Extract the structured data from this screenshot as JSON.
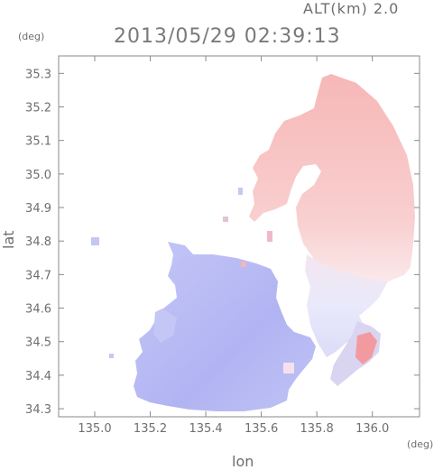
{
  "header": {
    "altitude": "ALT(km) 2.0",
    "timestamp": "2013/05/29 02:39:13",
    "unit_y": "(deg)",
    "unit_x": "(deg)"
  },
  "axes": {
    "xlabel": "lon",
    "ylabel": "lat",
    "x_ticks": [
      "135.0",
      "135.2",
      "135.4",
      "135.6",
      "135.8",
      "136.0"
    ],
    "y_ticks": [
      "35.3",
      "35.2",
      "35.1",
      "35.0",
      "34.9",
      "34.8",
      "34.7",
      "34.6",
      "34.5",
      "34.4",
      "34.3"
    ],
    "x_range": [
      134.87,
      136.17
    ],
    "y_range": [
      34.276,
      35.352
    ]
  },
  "colors": {
    "receding": "#f6b5b5",
    "approaching": "#b3b6f3",
    "frame": "#8a8a8a"
  }
}
